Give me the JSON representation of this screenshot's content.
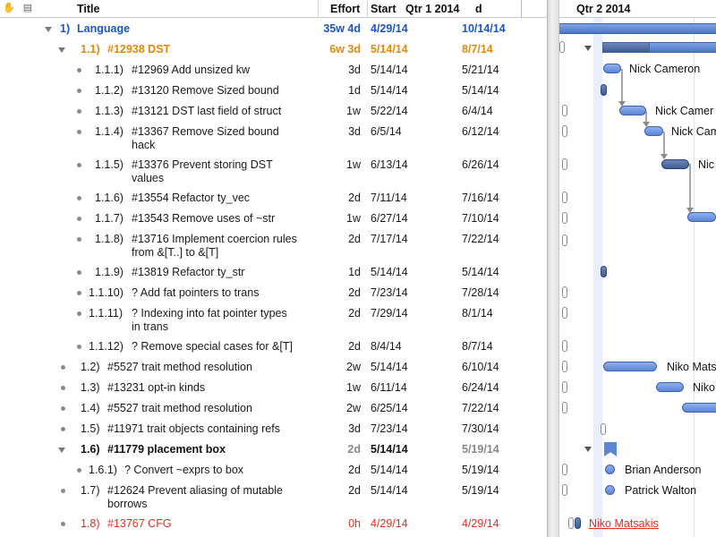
{
  "header": {
    "title": "Title",
    "effort": "Effort",
    "start": "Start",
    "q1": "Qtr 1 2014",
    "finish_fragment": "d",
    "q2": "Qtr 2 2014"
  },
  "rows": [
    {
      "num": "1)",
      "title": "Language",
      "effort": "35w 4d",
      "start": "4/29/14",
      "finish": "10/14/14",
      "style": "blue",
      "marker": "tri"
    },
    {
      "num": "1.1)",
      "title": "#12938 DST",
      "effort": "6w 3d",
      "start": "5/14/14",
      "finish": "8/7/14",
      "style": "orange",
      "marker": "tri"
    },
    {
      "num": "1.1.1)",
      "title": "#12969 Add unsized kw",
      "effort": "3d",
      "start": "5/14/14",
      "finish": "5/21/14",
      "style": "normal",
      "marker": "bullet"
    },
    {
      "num": "1.1.2)",
      "title": "#13120 Remove Sized bound",
      "effort": "1d",
      "start": "5/14/14",
      "finish": "5/14/14",
      "style": "normal",
      "marker": "bullet"
    },
    {
      "num": "1.1.3)",
      "title": "#13121 DST last field of struct",
      "effort": "1w",
      "start": "5/22/14",
      "finish": "6/4/14",
      "style": "normal",
      "marker": "bullet"
    },
    {
      "num": "1.1.4)",
      "title": "#13367 Remove Sized bound hack",
      "effort": "3d",
      "start": "6/5/14",
      "finish": "6/12/14",
      "style": "normal",
      "marker": "bullet"
    },
    {
      "num": "1.1.5)",
      "title": "#13376 Prevent storing DST values",
      "effort": "1w",
      "start": "6/13/14",
      "finish": "6/26/14",
      "style": "normal",
      "marker": "bullet"
    },
    {
      "num": "1.1.6)",
      "title": "#13554 Refactor ty_vec",
      "effort": "2d",
      "start": "7/11/14",
      "finish": "7/16/14",
      "style": "normal",
      "marker": "bullet"
    },
    {
      "num": "1.1.7)",
      "title": "#13543 Remove uses of ~str",
      "effort": "1w",
      "start": "6/27/14",
      "finish": "7/10/14",
      "style": "normal",
      "marker": "bullet"
    },
    {
      "num": "1.1.8)",
      "title": "#13716 Implement coercion rules from &[T..] to &[T]",
      "effort": "2d",
      "start": "7/17/14",
      "finish": "7/22/14",
      "style": "normal",
      "marker": "bullet"
    },
    {
      "num": "1.1.9)",
      "title": "#13819 Refactor ty_str",
      "effort": "1d",
      "start": "5/14/14",
      "finish": "5/14/14",
      "style": "normal",
      "marker": "bullet"
    },
    {
      "num": "1.1.10)",
      "title": "? Add fat pointers to trans",
      "effort": "2d",
      "start": "7/23/14",
      "finish": "7/28/14",
      "style": "normal",
      "marker": "bullet"
    },
    {
      "num": "1.1.11)",
      "title": "? Indexing into fat pointer types in trans",
      "effort": "2d",
      "start": "7/29/14",
      "finish": "8/1/14",
      "style": "normal",
      "marker": "bullet"
    },
    {
      "num": "1.1.12)",
      "title": "? Remove special cases for &[T]",
      "effort": "2d",
      "start": "8/4/14",
      "finish": "8/7/14",
      "style": "normal",
      "marker": "bullet"
    },
    {
      "num": "1.2)",
      "title": "#5527 trait method resolution",
      "effort": "2w",
      "start": "5/14/14",
      "finish": "6/10/14",
      "style": "normal",
      "marker": "bullet"
    },
    {
      "num": "1.3)",
      "title": "#13231 opt-in kinds",
      "effort": "1w",
      "start": "6/11/14",
      "finish": "6/24/14",
      "style": "normal",
      "marker": "bullet"
    },
    {
      "num": "1.4)",
      "title": "#5527 trait method resolution",
      "effort": "2w",
      "start": "6/25/14",
      "finish": "7/22/14",
      "style": "normal",
      "marker": "bullet"
    },
    {
      "num": "1.5)",
      "title": "#11971 trait objects containing refs",
      "effort": "3d",
      "start": "7/23/14",
      "finish": "7/30/14",
      "style": "normal",
      "marker": "bullet"
    },
    {
      "num": "1.6)",
      "title": "#11779 placement box",
      "effort": "2d",
      "start": "5/14/14",
      "finish": "5/19/14",
      "style": "bold",
      "marker": "tri"
    },
    {
      "num": "1.6.1)",
      "title": "? Convert ~exprs to box",
      "effort": "2d",
      "start": "5/14/14",
      "finish": "5/19/14",
      "style": "normal",
      "marker": "bullet"
    },
    {
      "num": "1.7)",
      "title": "#12624 Prevent aliasing of mutable borrows",
      "effort": "2d",
      "start": "5/14/14",
      "finish": "5/19/14",
      "style": "normal",
      "marker": "bullet"
    },
    {
      "num": "1.8)",
      "title": "#13767 CFG",
      "effort": "0h",
      "start": "4/29/14",
      "finish": "4/29/14",
      "style": "red",
      "marker": "bullet"
    }
  ],
  "gantt": {
    "labels": {
      "r2": "Nick Cameron",
      "r4": "Nick Camer",
      "r5": "Nick Cam",
      "r6": "Nic",
      "r14": "Niko Mats",
      "r15": "Niko",
      "r18": "Brian Anderson",
      "r19": "Patrick Walton",
      "r21": "Niko Matsakis"
    }
  },
  "colors": {
    "accent": "#1a56c5",
    "warning": "#e08a0f",
    "critical": "#e0301e",
    "bar": "#5c86d6"
  }
}
